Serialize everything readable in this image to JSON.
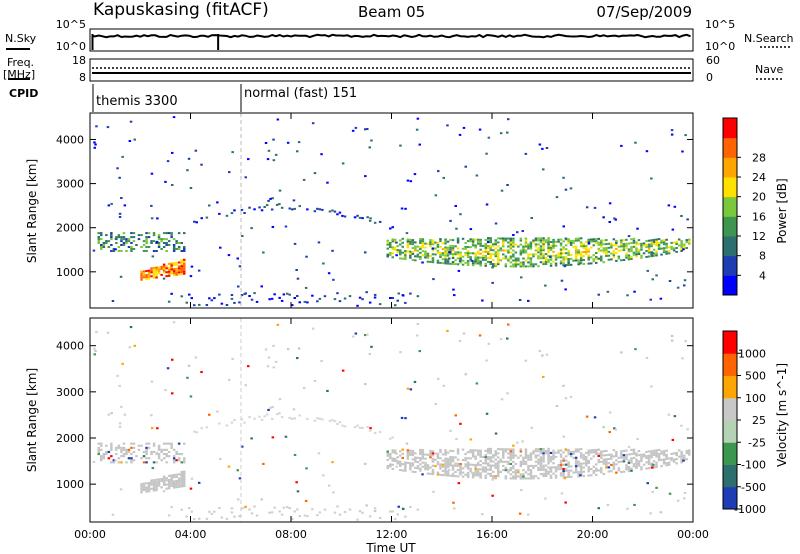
{
  "header": {
    "station": "Kapuskasing (fitACF)",
    "beam": "Beam 05",
    "date": "07/Sep/2009"
  },
  "top_panels": {
    "nsky_label": "N.Sky",
    "nsky_ticks": [
      "10^5",
      "10^0"
    ],
    "nsearch_label": "N.Search",
    "nsearch_ticks": [
      "10^5",
      "10^0"
    ],
    "freq_label": "Freq.",
    "freq_unit": "[MHz]",
    "freq_ticks": [
      "18",
      "8"
    ],
    "nave_label": "Nave",
    "nave_ticks": [
      "60",
      "0"
    ],
    "cpid_label": "CPID",
    "cpid_segments": [
      {
        "label": "themis 3300",
        "start_h": 0.2,
        "end_h": 6.0
      },
      {
        "label": "normal (fast) 151",
        "start_h": 6.0,
        "end_h": 24.0
      }
    ]
  },
  "chart_data": [
    {
      "type": "heatmap",
      "quantity": "Power",
      "ylabel": "Slant Range [km]",
      "xlabel": "Time UT",
      "xlim_hours": [
        0,
        24
      ],
      "ylim_km": [
        180,
        4600
      ],
      "y_ticks": [
        1000,
        2000,
        3000,
        4000
      ],
      "x_tick_labels": [
        "00:00",
        "04:00",
        "08:00",
        "12:00",
        "16:00",
        "20:00",
        "00:00"
      ],
      "colorbar": {
        "label": "Power [dB]",
        "ticks": [
          "4",
          "8",
          "12",
          "16",
          "20",
          "24",
          "28"
        ],
        "colors": [
          "#0000ff",
          "#1e3cb4",
          "#2d6e6e",
          "#3c9650",
          "#7ac83c",
          "#ffe100",
          "#ffa500",
          "#ff6400",
          "#ff0000"
        ]
      },
      "features": [
        {
          "name": "morning echo band",
          "t_start": 0.3,
          "t_end": 3.8,
          "range_km": [
            1450,
            1900
          ]
        },
        {
          "name": "strong morning echoes",
          "t_start": 2.0,
          "t_end": 3.8,
          "range_km": [
            800,
            1300
          ],
          "power_db": "20-28"
        },
        {
          "name": "afternoon echo band",
          "t_start": 11.8,
          "t_end": 23.9,
          "range_km": [
            1050,
            1800
          ],
          "power_db": "8-20"
        },
        {
          "name": "ground scatter arc",
          "t_start": 3.5,
          "t_end": 12.0,
          "range_km": [
            1900,
            2500
          ]
        },
        {
          "name": "near range echoes",
          "t_start": 3.0,
          "t_end": 13.0,
          "range_km": [
            200,
            500
          ]
        }
      ]
    },
    {
      "type": "heatmap",
      "quantity": "Velocity",
      "ylabel": "Slant Range [km]",
      "xlabel": "Time UT",
      "xlim_hours": [
        0,
        24
      ],
      "ylim_km": [
        180,
        4600
      ],
      "y_ticks": [
        1000,
        2000,
        3000,
        4000
      ],
      "x_tick_labels": [
        "00:00",
        "04:00",
        "08:00",
        "12:00",
        "16:00",
        "20:00",
        "00:00"
      ],
      "colorbar": {
        "label": "Velocity [m s^-1]",
        "ticks": [
          "1000",
          "500",
          "100",
          "25",
          "-25",
          "-100",
          "-500",
          "-1000"
        ],
        "colors": [
          "#1e3cb4",
          "#2d6e6e",
          "#3c9650",
          "#b4d2b4",
          "#c8c8c8",
          "#ffa500",
          "#ff6400",
          "#ff0000"
        ]
      },
      "features": [
        {
          "name": "ground scatter (grey) afternoon",
          "t_start": 11.8,
          "t_end": 23.9,
          "range_km": [
            1050,
            1800
          ],
          "velocity": "-25 to 25"
        },
        {
          "name": "morning grey band",
          "t_start": 0.3,
          "t_end": 3.8,
          "range_km": [
            800,
            1900
          ],
          "velocity": "-25 to 25"
        }
      ]
    }
  ],
  "x_axis": {
    "title": "Time UT",
    "tick_labels": [
      "00:00",
      "04:00",
      "08:00",
      "12:00",
      "16:00",
      "20:00",
      "00:00"
    ]
  }
}
